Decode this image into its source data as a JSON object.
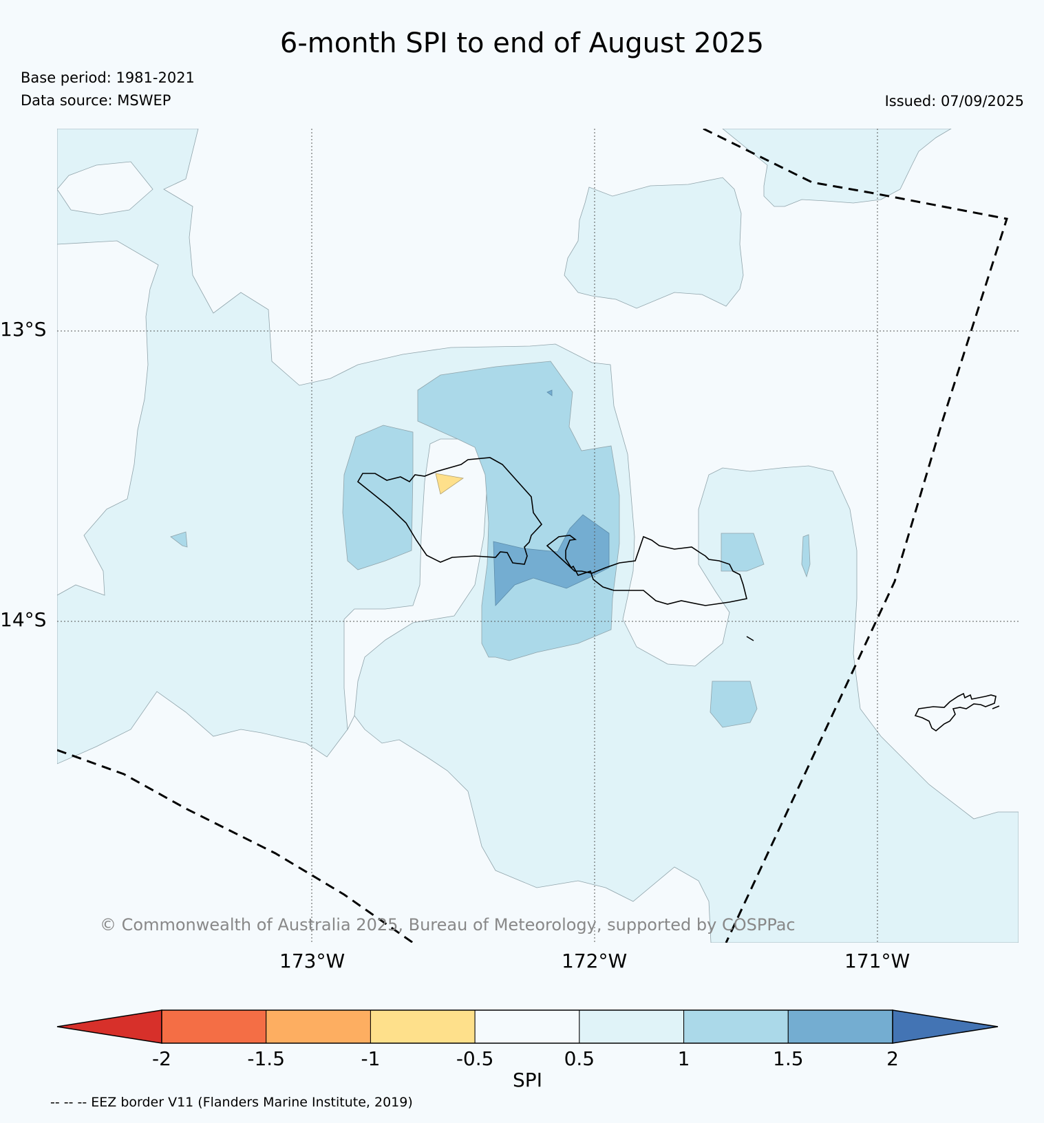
{
  "title": "6-month SPI to end of August 2025",
  "base_period": "Base period: 1981-2021",
  "data_source": "Data source: MSWEP",
  "issued": "Issued: 07/09/2025",
  "copyright": "© Commonwealth of Australia 2025, Bureau of Meteorology, supported by COSPPac",
  "footnote": "-- -- -- EEZ border V11 (Flanders Marine Institute, 2019)",
  "map": {
    "lon_labels": [
      "173°W",
      "172°W",
      "171°W"
    ],
    "lat_labels": [
      "13°S",
      "14°S"
    ],
    "extent": {
      "lon": [
        -173.9,
        -170.5
      ],
      "lat": [
        -15.1,
        -12.3
      ]
    }
  },
  "colorbar": {
    "label": "SPI",
    "ticks": [
      "-2",
      "-1.5",
      "-1",
      "-0.5",
      "0.5",
      "1",
      "1.5",
      "2"
    ],
    "colors": [
      "#d7302a",
      "#f46e45",
      "#fdae61",
      "#fee08b",
      "#f5fafd",
      "#e0f3f8",
      "#abd9e9",
      "#74add1",
      "#4374b4"
    ]
  }
}
